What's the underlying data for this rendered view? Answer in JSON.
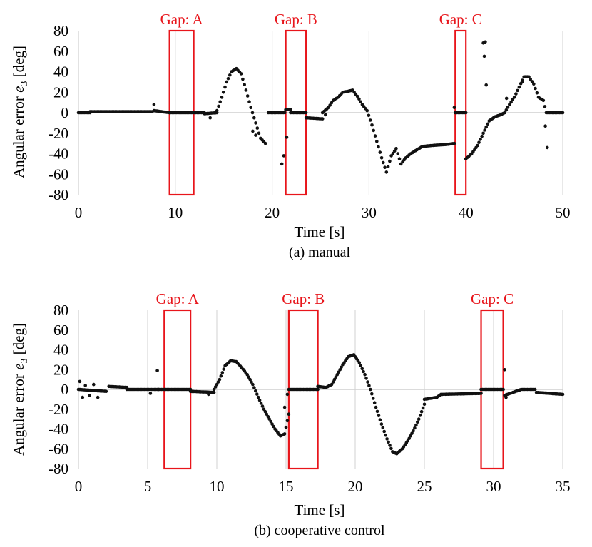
{
  "colors": {
    "points": "#111111",
    "gap_box": "#e8151b",
    "grid": "#d9d9d9",
    "axis": "#cfcfcf"
  },
  "chart_data": [
    {
      "type": "scatter",
      "title": "",
      "caption": "(a) manual",
      "xlabel": "Time [s]",
      "ylabel_main": "Angular error ",
      "ylabel_var": "e",
      "ylabel_sub": "3",
      "ylabel_unit": " [deg]",
      "xlim": [
        0,
        50
      ],
      "ylim": [
        -80,
        80
      ],
      "xticks": [
        0,
        10,
        20,
        30,
        40,
        50
      ],
      "yticks": [
        -80,
        -60,
        -40,
        -20,
        0,
        20,
        40,
        60,
        80
      ],
      "gaps": [
        {
          "label": "Gap: A",
          "x_start": 9.4,
          "x_end": 11.9
        },
        {
          "label": "Gap: B",
          "x_start": 21.4,
          "x_end": 23.5
        },
        {
          "label": "Gap: C",
          "x_start": 38.9,
          "x_end": 40.0
        }
      ],
      "segments": [
        [
          [
            0,
            0
          ],
          [
            1.2,
            0
          ]
        ],
        [
          [
            1.2,
            1
          ],
          [
            7.6,
            1
          ]
        ],
        [
          [
            7.8,
            2
          ],
          [
            9.4,
            0
          ]
        ],
        [
          [
            9.4,
            0
          ],
          [
            13.0,
            0
          ]
        ],
        [
          [
            13.0,
            -1
          ],
          [
            14.3,
            0
          ]
        ],
        [
          [
            14.3,
            2
          ],
          [
            14.8,
            15
          ],
          [
            15.3,
            30
          ],
          [
            15.8,
            40
          ],
          [
            16.3,
            43
          ],
          [
            16.8,
            38
          ],
          [
            17.3,
            22
          ],
          [
            17.8,
            5
          ],
          [
            18.3,
            -10
          ],
          [
            18.8,
            -25
          ],
          [
            19.3,
            -30
          ]
        ],
        [
          [
            19.6,
            0
          ],
          [
            21.3,
            0
          ]
        ],
        [
          [
            21.4,
            3
          ],
          [
            21.9,
            3
          ]
        ],
        [
          [
            21.9,
            0
          ],
          [
            23.5,
            0
          ]
        ],
        [
          [
            23.5,
            -5
          ],
          [
            25.2,
            -6
          ]
        ],
        [
          [
            25.2,
            0
          ],
          [
            25.8,
            5
          ],
          [
            26.3,
            12
          ],
          [
            26.8,
            15
          ],
          [
            27.3,
            20
          ],
          [
            27.9,
            21
          ],
          [
            28.3,
            22
          ],
          [
            28.8,
            16
          ],
          [
            29.3,
            8
          ],
          [
            29.8,
            2
          ],
          [
            30.3,
            -12
          ],
          [
            30.8,
            -28
          ],
          [
            31.3,
            -44
          ],
          [
            31.8,
            -58
          ],
          [
            32.3,
            -42
          ],
          [
            32.8,
            -35
          ],
          [
            33.3,
            -50
          ],
          [
            33.8,
            -44
          ],
          [
            34.3,
            -40
          ],
          [
            34.8,
            -37
          ],
          [
            35.5,
            -33
          ],
          [
            36.5,
            -32
          ],
          [
            38.0,
            -31
          ],
          [
            38.8,
            -30
          ]
        ],
        [
          [
            38.9,
            0
          ],
          [
            40.0,
            0
          ]
        ],
        [
          [
            40.0,
            -45
          ],
          [
            40.6,
            -40
          ],
          [
            41.2,
            -32
          ],
          [
            41.8,
            -20
          ],
          [
            42.4,
            -8
          ],
          [
            43.0,
            -4
          ],
          [
            43.6,
            -2
          ],
          [
            44.0,
            0
          ],
          [
            44.5,
            8
          ],
          [
            45.0,
            15
          ],
          [
            45.5,
            25
          ],
          [
            46.0,
            35
          ],
          [
            46.5,
            35
          ],
          [
            47.0,
            28
          ],
          [
            47.5,
            15
          ],
          [
            48.0,
            12
          ],
          [
            48.3,
            0
          ],
          [
            50.0,
            0
          ]
        ]
      ],
      "outliers": [
        [
          7.8,
          8
        ],
        [
          13.6,
          -5
        ],
        [
          18.0,
          -18
        ],
        [
          18.3,
          -22
        ],
        [
          21.0,
          -50
        ],
        [
          21.2,
          -42
        ],
        [
          21.5,
          -24
        ],
        [
          25.5,
          -2
        ],
        [
          38.8,
          5
        ],
        [
          41.8,
          68
        ],
        [
          42.0,
          69
        ],
        [
          41.9,
          55
        ],
        [
          42.1,
          27
        ],
        [
          48.2,
          -13
        ],
        [
          48.4,
          -34
        ],
        [
          44.2,
          14
        ],
        [
          45.8,
          30
        ]
      ]
    },
    {
      "type": "scatter",
      "title": "",
      "caption": "(b) cooperative control",
      "xlabel": "Time [s]",
      "ylabel_main": "Angular error ",
      "ylabel_var": "e",
      "ylabel_sub": "3",
      "ylabel_unit": " [deg]",
      "xlim": [
        0,
        35
      ],
      "ylim": [
        -80,
        80
      ],
      "xticks": [
        0,
        5,
        10,
        15,
        20,
        25,
        30,
        35
      ],
      "yticks": [
        -80,
        -60,
        -40,
        -20,
        0,
        20,
        40,
        60,
        80
      ],
      "gaps": [
        {
          "label": "Gap: A",
          "x_start": 6.2,
          "x_end": 8.1
        },
        {
          "label": "Gap: B",
          "x_start": 15.2,
          "x_end": 17.3
        },
        {
          "label": "Gap: C",
          "x_start": 29.1,
          "x_end": 30.7
        }
      ],
      "segments": [
        [
          [
            0,
            0
          ],
          [
            2.0,
            -2
          ]
        ],
        [
          [
            2.2,
            3
          ],
          [
            3.5,
            2
          ]
        ],
        [
          [
            3.5,
            0
          ],
          [
            5.8,
            0
          ]
        ],
        [
          [
            5.8,
            0
          ],
          [
            8.1,
            0
          ]
        ],
        [
          [
            8.1,
            -2
          ],
          [
            9.8,
            -3
          ]
        ],
        [
          [
            9.8,
            0
          ],
          [
            10.2,
            10
          ],
          [
            10.6,
            24
          ],
          [
            11.0,
            29
          ],
          [
            11.4,
            28
          ],
          [
            11.8,
            22
          ],
          [
            12.2,
            15
          ],
          [
            12.6,
            5
          ],
          [
            13.0,
            -8
          ],
          [
            13.4,
            -20
          ],
          [
            13.8,
            -30
          ],
          [
            14.2,
            -40
          ],
          [
            14.6,
            -47
          ],
          [
            14.9,
            -45
          ],
          [
            15.2,
            -25
          ]
        ],
        [
          [
            15.2,
            0
          ],
          [
            17.3,
            0
          ]
        ],
        [
          [
            17.3,
            3
          ],
          [
            17.9,
            2
          ],
          [
            18.3,
            5
          ],
          [
            18.7,
            15
          ],
          [
            19.1,
            25
          ],
          [
            19.5,
            33
          ],
          [
            19.9,
            35
          ],
          [
            20.3,
            27
          ],
          [
            20.7,
            15
          ],
          [
            21.1,
            0
          ],
          [
            21.5,
            -18
          ],
          [
            21.9,
            -35
          ],
          [
            22.3,
            -50
          ],
          [
            22.7,
            -63
          ],
          [
            23.0,
            -65
          ],
          [
            23.4,
            -60
          ],
          [
            23.8,
            -52
          ],
          [
            24.2,
            -42
          ],
          [
            24.6,
            -30
          ],
          [
            25.0,
            -15
          ]
        ],
        [
          [
            25.0,
            -10
          ],
          [
            25.9,
            -8
          ],
          [
            26.2,
            -5
          ],
          [
            29.1,
            -4
          ]
        ],
        [
          [
            29.1,
            0
          ],
          [
            30.7,
            0
          ]
        ],
        [
          [
            30.8,
            -6
          ],
          [
            31.6,
            -2
          ],
          [
            32.0,
            0
          ],
          [
            33.0,
            0
          ],
          [
            33.1,
            -3
          ],
          [
            35.0,
            -5
          ]
        ]
      ],
      "outliers": [
        [
          0.1,
          8
        ],
        [
          0.3,
          -8
        ],
        [
          0.5,
          4
        ],
        [
          0.8,
          -6
        ],
        [
          1.1,
          5
        ],
        [
          1.4,
          -8
        ],
        [
          5.7,
          19
        ],
        [
          9.4,
          -5
        ],
        [
          14.9,
          -18
        ],
        [
          15.1,
          -5
        ],
        [
          30.8,
          20
        ],
        [
          30.9,
          -8
        ],
        [
          5.2,
          -4
        ]
      ]
    }
  ]
}
